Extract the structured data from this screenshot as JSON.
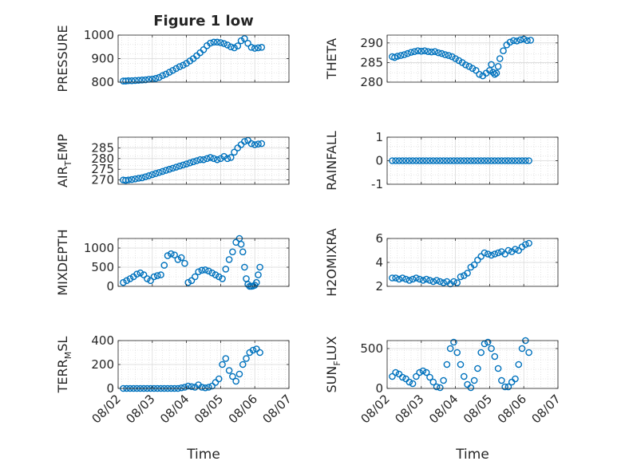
{
  "figure": {
    "title": "Figure 1 low"
  },
  "style": {
    "marker_color": "#0072bd",
    "axis_color": "#262626",
    "grid_color": "#d9d9d9"
  },
  "chart_data": [
    {
      "type": "scatter",
      "id": "pressure",
      "ylabel": "PRESSURE",
      "ylim": [
        800,
        1000
      ],
      "yticks": [
        800,
        900,
        1000
      ],
      "xlim": [
        0,
        5
      ],
      "xticks": [
        0,
        1,
        2,
        3,
        4,
        5
      ],
      "xticklabels": [
        "08/02",
        "08/03",
        "08/04",
        "08/05",
        "08/06",
        "08/07"
      ],
      "show_xticklabels": false,
      "xlabel": "",
      "grid": true,
      "x": [
        0.15,
        0.22,
        0.3,
        0.4,
        0.5,
        0.6,
        0.7,
        0.8,
        0.9,
        1.0,
        1.1,
        1.2,
        1.3,
        1.4,
        1.5,
        1.6,
        1.7,
        1.8,
        1.9,
        2.0,
        2.1,
        2.2,
        2.3,
        2.4,
        2.5,
        2.6,
        2.7,
        2.8,
        2.9,
        3.0,
        3.1,
        3.2,
        3.3,
        3.4,
        3.5,
        3.6,
        3.7,
        3.8,
        3.9,
        4.0,
        4.1,
        4.2
      ],
      "y": [
        805,
        805,
        806,
        806,
        807,
        808,
        809,
        810,
        812,
        813,
        816,
        820,
        828,
        834,
        842,
        850,
        858,
        866,
        872,
        880,
        890,
        900,
        912,
        925,
        938,
        955,
        966,
        970,
        970,
        968,
        964,
        958,
        950,
        946,
        954,
        976,
        985,
        965,
        948,
        944,
        946,
        948
      ]
    },
    {
      "type": "scatter",
      "id": "theta",
      "ylabel": "THETA",
      "ylim": [
        280,
        292
      ],
      "yticks": [
        280,
        285,
        290
      ],
      "xlim": [
        0,
        5
      ],
      "xticks": [
        0,
        1,
        2,
        3,
        4,
        5
      ],
      "xticklabels": [
        "08/02",
        "08/03",
        "08/04",
        "08/05",
        "08/06",
        "08/07"
      ],
      "show_xticklabels": false,
      "xlabel": "",
      "grid": true,
      "x": [
        0.15,
        0.22,
        0.3,
        0.4,
        0.5,
        0.6,
        0.7,
        0.8,
        0.9,
        1.0,
        1.1,
        1.2,
        1.3,
        1.4,
        1.5,
        1.6,
        1.7,
        1.8,
        1.9,
        2.0,
        2.1,
        2.2,
        2.3,
        2.4,
        2.5,
        2.6,
        2.7,
        2.8,
        2.9,
        3.0,
        3.05,
        3.1,
        3.15,
        3.2,
        3.25,
        3.3,
        3.4,
        3.5,
        3.6,
        3.7,
        3.8,
        3.9,
        4.0,
        4.1,
        4.2
      ],
      "y": [
        286.5,
        286.3,
        286.6,
        286.8,
        287.0,
        287.3,
        287.6,
        287.8,
        288.0,
        287.9,
        288.0,
        287.8,
        287.7,
        287.8,
        287.5,
        287.3,
        287.0,
        286.8,
        286.5,
        286.0,
        285.5,
        285.0,
        284.4,
        284.0,
        283.5,
        283.0,
        282.0,
        281.6,
        282.3,
        283.0,
        284.5,
        282.5,
        282.0,
        282.3,
        284.0,
        286.0,
        288.0,
        289.5,
        290.2,
        290.6,
        290.5,
        290.8,
        291.0,
        290.6,
        290.7
      ]
    },
    {
      "type": "scatter",
      "id": "air-temp",
      "ylabel": "AIR_TEMP",
      "ylabel_main": "AIR",
      "ylabel_sub": "T",
      "ylabel_rest": "EMP",
      "ylim": [
        268,
        290
      ],
      "yticks": [
        270,
        275,
        280,
        285
      ],
      "xlim": [
        0,
        5
      ],
      "xticks": [
        0,
        1,
        2,
        3,
        4,
        5
      ],
      "xticklabels": [
        "08/02",
        "08/03",
        "08/04",
        "08/05",
        "08/06",
        "08/07"
      ],
      "show_xticklabels": false,
      "xlabel": "",
      "grid": true,
      "x": [
        0.15,
        0.22,
        0.3,
        0.4,
        0.5,
        0.6,
        0.7,
        0.8,
        0.9,
        1.0,
        1.1,
        1.2,
        1.3,
        1.4,
        1.5,
        1.6,
        1.7,
        1.8,
        1.9,
        2.0,
        2.1,
        2.2,
        2.3,
        2.4,
        2.5,
        2.6,
        2.7,
        2.8,
        2.9,
        3.0,
        3.1,
        3.2,
        3.3,
        3.4,
        3.5,
        3.6,
        3.7,
        3.8,
        3.9,
        4.0,
        4.1,
        4.2
      ],
      "y": [
        270.0,
        269.8,
        270.0,
        270.2,
        270.5,
        270.8,
        271.0,
        271.5,
        272.0,
        272.5,
        273.0,
        273.5,
        274.0,
        274.5,
        275.0,
        275.5,
        276.0,
        276.5,
        277.0,
        277.5,
        278.0,
        278.5,
        279.0,
        279.5,
        279.5,
        280.0,
        280.5,
        280.0,
        279.5,
        280.0,
        281.0,
        280.0,
        280.5,
        283.0,
        285.0,
        286.5,
        288.0,
        288.5,
        287.0,
        286.5,
        286.8,
        287.0
      ]
    },
    {
      "type": "scatter",
      "id": "rainfall",
      "ylabel": "RAINFALL",
      "ylim": [
        -1,
        1
      ],
      "yticks": [
        -1,
        0,
        1
      ],
      "xlim": [
        0,
        5
      ],
      "xticks": [
        0,
        1,
        2,
        3,
        4,
        5
      ],
      "xticklabels": [
        "08/02",
        "08/03",
        "08/04",
        "08/05",
        "08/06",
        "08/07"
      ],
      "show_xticklabels": false,
      "xlabel": "",
      "grid": true,
      "x": [
        0.15,
        0.25,
        0.35,
        0.45,
        0.55,
        0.65,
        0.75,
        0.85,
        0.95,
        1.05,
        1.15,
        1.25,
        1.35,
        1.45,
        1.55,
        1.65,
        1.75,
        1.85,
        1.95,
        2.05,
        2.15,
        2.25,
        2.35,
        2.45,
        2.55,
        2.65,
        2.75,
        2.85,
        2.95,
        3.05,
        3.15,
        3.25,
        3.35,
        3.45,
        3.55,
        3.65,
        3.75,
        3.85,
        3.95,
        4.05,
        4.15
      ],
      "y": [
        0,
        0,
        0,
        0,
        0,
        0,
        0,
        0,
        0,
        0,
        0,
        0,
        0,
        0,
        0,
        0,
        0,
        0,
        0,
        0,
        0,
        0,
        0,
        0,
        0,
        0,
        0,
        0,
        0,
        0,
        0,
        0,
        0,
        0,
        0,
        0,
        0,
        0,
        0,
        0,
        0
      ]
    },
    {
      "type": "scatter",
      "id": "mixdepth",
      "ylabel": "MIXDEPTH",
      "ylim": [
        0,
        1250
      ],
      "yticks": [
        0,
        500,
        1000
      ],
      "xlim": [
        0,
        5
      ],
      "xticks": [
        0,
        1,
        2,
        3,
        4,
        5
      ],
      "xticklabels": [
        "08/02",
        "08/03",
        "08/04",
        "08/05",
        "08/06",
        "08/07"
      ],
      "show_xticklabels": false,
      "xlabel": "",
      "grid": true,
      "x": [
        0.15,
        0.25,
        0.35,
        0.45,
        0.55,
        0.65,
        0.75,
        0.85,
        0.95,
        1.05,
        1.15,
        1.25,
        1.35,
        1.45,
        1.55,
        1.65,
        1.75,
        1.85,
        1.95,
        2.05,
        2.15,
        2.25,
        2.35,
        2.45,
        2.55,
        2.65,
        2.75,
        2.85,
        2.95,
        3.05,
        3.15,
        3.25,
        3.35,
        3.45,
        3.55,
        3.6,
        3.65,
        3.7,
        3.75,
        3.8,
        3.85,
        3.9,
        3.95,
        4.0,
        4.05,
        4.1,
        4.15
      ],
      "y": [
        100,
        150,
        200,
        250,
        320,
        350,
        300,
        200,
        150,
        250,
        280,
        300,
        550,
        800,
        850,
        820,
        700,
        750,
        600,
        100,
        150,
        250,
        380,
        420,
        430,
        400,
        350,
        300,
        250,
        200,
        450,
        700,
        900,
        1150,
        1250,
        1100,
        900,
        500,
        200,
        50,
        0,
        0,
        10,
        30,
        100,
        300,
        500
      ]
    },
    {
      "type": "scatter",
      "id": "h2omixra",
      "ylabel": "H2OMIXRA",
      "ylim": [
        2,
        6
      ],
      "yticks": [
        2,
        4,
        6
      ],
      "xlim": [
        0,
        5
      ],
      "xticks": [
        0,
        1,
        2,
        3,
        4,
        5
      ],
      "xticklabels": [
        "08/02",
        "08/03",
        "08/04",
        "08/05",
        "08/06",
        "08/07"
      ],
      "show_xticklabels": false,
      "xlabel": "",
      "grid": true,
      "x": [
        0.15,
        0.25,
        0.35,
        0.45,
        0.55,
        0.65,
        0.75,
        0.85,
        0.95,
        1.05,
        1.15,
        1.25,
        1.35,
        1.45,
        1.55,
        1.65,
        1.75,
        1.85,
        1.95,
        2.05,
        2.15,
        2.25,
        2.35,
        2.45,
        2.55,
        2.65,
        2.75,
        2.85,
        2.95,
        3.05,
        3.15,
        3.25,
        3.35,
        3.45,
        3.55,
        3.65,
        3.75,
        3.85,
        3.95,
        4.05,
        4.15
      ],
      "y": [
        2.7,
        2.7,
        2.6,
        2.7,
        2.6,
        2.5,
        2.6,
        2.7,
        2.6,
        2.5,
        2.6,
        2.5,
        2.4,
        2.5,
        2.4,
        2.3,
        2.4,
        2.2,
        2.4,
        2.3,
        2.8,
        2.9,
        3.1,
        3.6,
        3.8,
        4.2,
        4.5,
        4.8,
        4.7,
        4.6,
        4.7,
        4.8,
        4.9,
        4.7,
        5.0,
        4.9,
        5.1,
        5.0,
        5.3,
        5.5,
        5.6
      ]
    },
    {
      "type": "scatter",
      "id": "terr-msl",
      "ylabel": "TERR_MSL",
      "ylabel_main": "TERR",
      "ylabel_sub": "M",
      "ylabel_rest": "SL",
      "ylim": [
        0,
        400
      ],
      "yticks": [
        0,
        200,
        400
      ],
      "xlim": [
        0,
        5
      ],
      "xticks": [
        0,
        1,
        2,
        3,
        4,
        5
      ],
      "xticklabels": [
        "08/02",
        "08/03",
        "08/04",
        "08/05",
        "08/06",
        "08/07"
      ],
      "show_xticklabels": true,
      "xlabel": "Time",
      "grid": true,
      "x": [
        0.15,
        0.25,
        0.35,
        0.45,
        0.55,
        0.65,
        0.75,
        0.85,
        0.95,
        1.05,
        1.15,
        1.25,
        1.35,
        1.45,
        1.55,
        1.65,
        1.75,
        1.85,
        1.95,
        2.05,
        2.15,
        2.25,
        2.35,
        2.45,
        2.55,
        2.65,
        2.75,
        2.85,
        2.95,
        3.05,
        3.15,
        3.25,
        3.35,
        3.45,
        3.55,
        3.65,
        3.75,
        3.85,
        3.95,
        4.05,
        4.15
      ],
      "y": [
        0,
        0,
        0,
        0,
        0,
        0,
        0,
        0,
        0,
        0,
        0,
        0,
        0,
        0,
        0,
        0,
        0,
        5,
        10,
        20,
        15,
        10,
        30,
        10,
        5,
        10,
        20,
        50,
        80,
        200,
        250,
        150,
        100,
        60,
        120,
        200,
        250,
        300,
        320,
        330,
        300
      ]
    },
    {
      "type": "scatter",
      "id": "sun-flux",
      "ylabel": "SUN_FLUX",
      "ylabel_main": "SUN",
      "ylabel_sub": "F",
      "ylabel_rest": "LUX",
      "ylim": [
        0,
        600
      ],
      "yticks": [
        0,
        500
      ],
      "xlim": [
        0,
        5
      ],
      "xticks": [
        0,
        1,
        2,
        3,
        4,
        5
      ],
      "xticklabels": [
        "08/02",
        "08/03",
        "08/04",
        "08/05",
        "08/06",
        "08/07"
      ],
      "show_xticklabels": true,
      "xlabel": "Time",
      "grid": true,
      "x": [
        0.15,
        0.25,
        0.35,
        0.45,
        0.55,
        0.65,
        0.75,
        0.85,
        0.95,
        1.05,
        1.15,
        1.25,
        1.35,
        1.45,
        1.55,
        1.65,
        1.75,
        1.85,
        1.95,
        2.05,
        2.15,
        2.25,
        2.35,
        2.45,
        2.55,
        2.65,
        2.75,
        2.85,
        2.95,
        3.05,
        3.15,
        3.25,
        3.35,
        3.45,
        3.55,
        3.65,
        3.75,
        3.85,
        3.95,
        4.05,
        4.15
      ],
      "y": [
        150,
        200,
        180,
        140,
        120,
        80,
        60,
        150,
        200,
        220,
        200,
        140,
        80,
        20,
        10,
        100,
        300,
        500,
        580,
        450,
        300,
        150,
        50,
        10,
        100,
        250,
        450,
        560,
        580,
        500,
        400,
        250,
        100,
        20,
        20,
        80,
        120,
        300,
        500,
        600,
        450
      ]
    }
  ]
}
